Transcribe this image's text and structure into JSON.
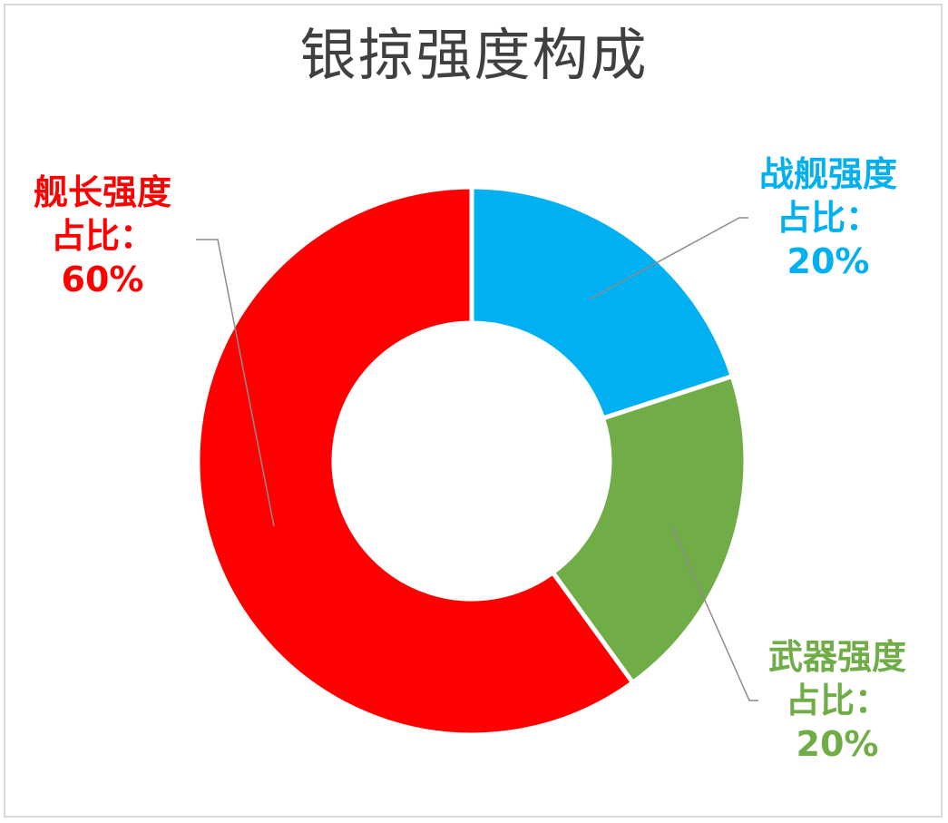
{
  "chart_data": {
    "type": "pie",
    "donut": true,
    "title": "银掠强度构成",
    "slices": [
      {
        "name": "战舰强度",
        "value": 20,
        "label_lines": [
          "战舰强度",
          "占比：",
          "20%"
        ],
        "color": "#00B0F0"
      },
      {
        "name": "武器强度",
        "value": 20,
        "label_lines": [
          "武器强度",
          "占比：",
          "20%"
        ],
        "color": "#70AD47"
      },
      {
        "name": "舰长强度",
        "value": 60,
        "label_lines": [
          "舰长强度",
          "占比：",
          "60%"
        ],
        "color": "#FF0000"
      }
    ],
    "start_angle_deg": 0,
    "direction": "clockwise",
    "legend": "none"
  }
}
